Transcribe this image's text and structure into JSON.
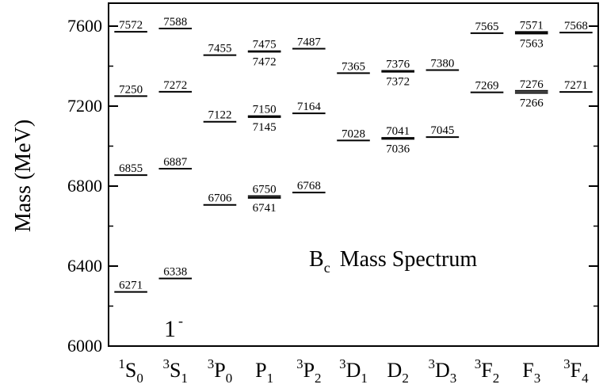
{
  "chart_data": {
    "type": "level-diagram",
    "title": "B",
    "title_sub": "c",
    "title_rest": "Mass Spectrum",
    "ylabel": "Mass  (MeV)",
    "ylim": [
      6000,
      7700
    ],
    "yticks": [
      6000,
      6400,
      6800,
      7200,
      7600
    ],
    "annotation": {
      "base": "1",
      "sup": "-"
    },
    "states": [
      {
        "pre": "1",
        "base": "S",
        "sub": "0"
      },
      {
        "pre": "3",
        "base": "S",
        "sub": "1"
      },
      {
        "pre": "3",
        "base": "P",
        "sub": "0"
      },
      {
        "pre": "",
        "base": "P",
        "sub": "1"
      },
      {
        "pre": "3",
        "base": "P",
        "sub": "2"
      },
      {
        "pre": "3",
        "base": "D",
        "sub": "1"
      },
      {
        "pre": "",
        "base": "D",
        "sub": "2"
      },
      {
        "pre": "3",
        "base": "D",
        "sub": "3"
      },
      {
        "pre": "3",
        "base": "F",
        "sub": "2"
      },
      {
        "pre": "",
        "base": "F",
        "sub": "3"
      },
      {
        "pre": "3",
        "base": "F",
        "sub": "4"
      }
    ],
    "levels": [
      {
        "col": 0,
        "value": 6271,
        "label": "6271",
        "pos": "above"
      },
      {
        "col": 0,
        "value": 6855,
        "label": "6855",
        "pos": "above"
      },
      {
        "col": 0,
        "value": 7250,
        "label": "7250",
        "pos": "above"
      },
      {
        "col": 0,
        "value": 7572,
        "label": "7572",
        "pos": "above"
      },
      {
        "col": 1,
        "value": 6338,
        "label": "6338",
        "pos": "above"
      },
      {
        "col": 1,
        "value": 6887,
        "label": "6887",
        "pos": "above"
      },
      {
        "col": 1,
        "value": 7272,
        "label": "7272",
        "pos": "above"
      },
      {
        "col": 1,
        "value": 7588,
        "label": "7588",
        "pos": "above"
      },
      {
        "col": 2,
        "value": 6706,
        "label": "6706",
        "pos": "above"
      },
      {
        "col": 2,
        "value": 7122,
        "label": "7122",
        "pos": "above"
      },
      {
        "col": 2,
        "value": 7455,
        "label": "7455",
        "pos": "above"
      },
      {
        "col": 3,
        "value": 6750,
        "label": "6750",
        "pos": "above"
      },
      {
        "col": 3,
        "value": 6741,
        "label": "6741",
        "pos": "below"
      },
      {
        "col": 3,
        "value": 7150,
        "label": "7150",
        "pos": "above"
      },
      {
        "col": 3,
        "value": 7145,
        "label": "7145",
        "pos": "below"
      },
      {
        "col": 3,
        "value": 7475,
        "label": "7475",
        "pos": "above"
      },
      {
        "col": 3,
        "value": 7472,
        "label": "7472",
        "pos": "below"
      },
      {
        "col": 4,
        "value": 6768,
        "label": "6768",
        "pos": "above"
      },
      {
        "col": 4,
        "value": 7164,
        "label": "7164",
        "pos": "above"
      },
      {
        "col": 4,
        "value": 7487,
        "label": "7487",
        "pos": "above"
      },
      {
        "col": 5,
        "value": 7028,
        "label": "7028",
        "pos": "above"
      },
      {
        "col": 5,
        "value": 7365,
        "label": "7365",
        "pos": "above"
      },
      {
        "col": 6,
        "value": 7041,
        "label": "7041",
        "pos": "above"
      },
      {
        "col": 6,
        "value": 7036,
        "label": "7036",
        "pos": "below"
      },
      {
        "col": 6,
        "value": 7376,
        "label": "7376",
        "pos": "above"
      },
      {
        "col": 6,
        "value": 7372,
        "label": "7372",
        "pos": "below"
      },
      {
        "col": 7,
        "value": 7045,
        "label": "7045",
        "pos": "above"
      },
      {
        "col": 7,
        "value": 7380,
        "label": "7380",
        "pos": "above"
      },
      {
        "col": 8,
        "value": 7269,
        "label": "7269",
        "pos": "above"
      },
      {
        "col": 8,
        "value": 7565,
        "label": "7565",
        "pos": "above"
      },
      {
        "col": 9,
        "value": 7276,
        "label": "7276",
        "pos": "above"
      },
      {
        "col": 9,
        "value": 7266,
        "label": "7266",
        "pos": "below"
      },
      {
        "col": 9,
        "value": 7571,
        "label": "7571",
        "pos": "above"
      },
      {
        "col": 9,
        "value": 7563,
        "label": "7563",
        "pos": "below"
      },
      {
        "col": 10,
        "value": 7271,
        "label": "7271",
        "pos": "above"
      },
      {
        "col": 10,
        "value": 7568,
        "label": "7568",
        "pos": "above"
      }
    ]
  }
}
